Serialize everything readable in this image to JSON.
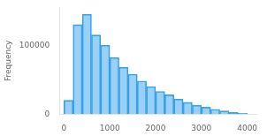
{
  "chart_data": {
    "type": "histogram",
    "ylabel": "Frequency",
    "bins": [
      0,
      200,
      400,
      600,
      800,
      1000,
      1200,
      1400,
      1600,
      1800,
      2000,
      2200,
      2400,
      2600,
      2800,
      3000,
      3200,
      3400,
      3600,
      3800,
      4000
    ],
    "values": [
      20000,
      130000,
      145000,
      115000,
      100000,
      82000,
      68000,
      58000,
      48000,
      40000,
      33000,
      28000,
      22000,
      17000,
      13000,
      10000,
      7000,
      4500,
      2500,
      1000
    ],
    "xlim": [
      -100,
      4200
    ],
    "xticks": [
      0,
      1000,
      2000,
      3000,
      4000
    ],
    "ylim": [
      0,
      155000
    ],
    "yticks": [
      0,
      100000
    ],
    "grid": false
  }
}
